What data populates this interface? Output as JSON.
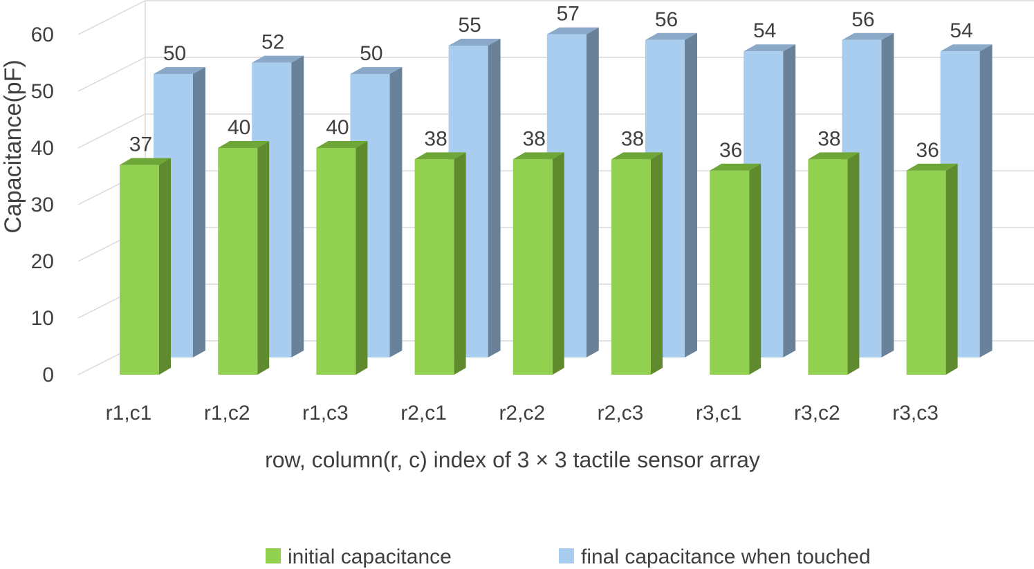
{
  "chart_data": {
    "type": "bar",
    "style": "3d-clustered",
    "categories": [
      "r1,c1",
      "r1,c2",
      "r1,c3",
      "r2,c1",
      "r2,c2",
      "r2,c3",
      "r3,c1",
      "r3,c2",
      "r3,c3"
    ],
    "series": [
      {
        "name": "initial capacitance",
        "values": [
          37,
          40,
          40,
          38,
          38,
          38,
          36,
          38,
          36
        ],
        "color": "#92d050",
        "side_color": "#5f8a2e",
        "top_color": "#6ea637"
      },
      {
        "name": "final capacitance when touched",
        "values": [
          50,
          52,
          50,
          55,
          57,
          56,
          54,
          56,
          54
        ],
        "color": "#a9cdef",
        "side_color": "#6a8299",
        "top_color": "#8aa9c8"
      }
    ],
    "xlabel": "row, column(r, c) index  of 3 × 3 tactile sensor array",
    "ylabel": "Capacitance(pF)",
    "ylim": [
      0,
      60
    ],
    "yticks": [
      0,
      10,
      20,
      30,
      40,
      50,
      60
    ],
    "grid": true,
    "data_labels": true,
    "legend_position": "bottom"
  }
}
